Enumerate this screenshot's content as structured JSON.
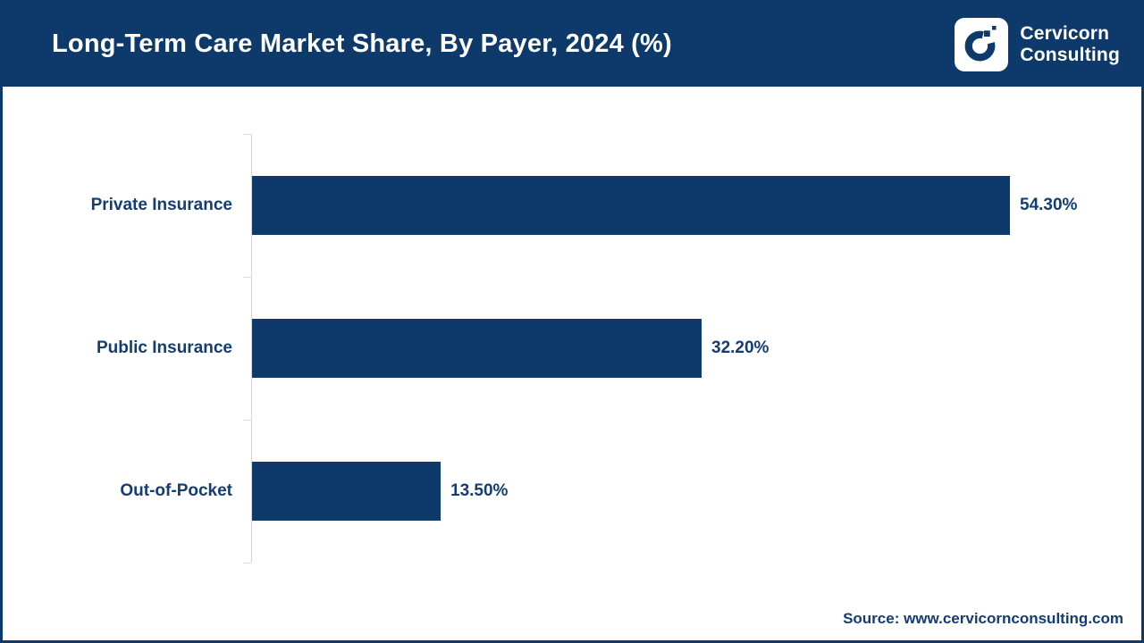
{
  "header": {
    "title": "Long-Term Care Market Share, By Payer, 2024 (%)",
    "logo": {
      "name": "cervicorn-consulting-logo",
      "line1": "Cervicorn",
      "line2": "Consulting"
    }
  },
  "chart_data": {
    "type": "bar",
    "orientation": "horizontal",
    "title": "Long-Term Care Market Share, By Payer, 2024 (%)",
    "categories": [
      "Private Insurance",
      "Public Insurance",
      "Out-of-Pocket"
    ],
    "values": [
      54.3,
      32.2,
      13.5
    ],
    "value_labels": [
      "54.30%",
      "32.20%",
      "13.50%"
    ],
    "unit": "%",
    "xlim": [
      0,
      60
    ],
    "grid": false,
    "legend": false,
    "bar_color": "#0d3a6b",
    "axis_color": "#d9d9d9",
    "label_color": "#133d73"
  },
  "footer": {
    "source": "Source: www.cervicornconsulting.com"
  },
  "colors": {
    "navy": "#0d3a6b",
    "white": "#ffffff",
    "axis_gray": "#d9d9d9"
  }
}
